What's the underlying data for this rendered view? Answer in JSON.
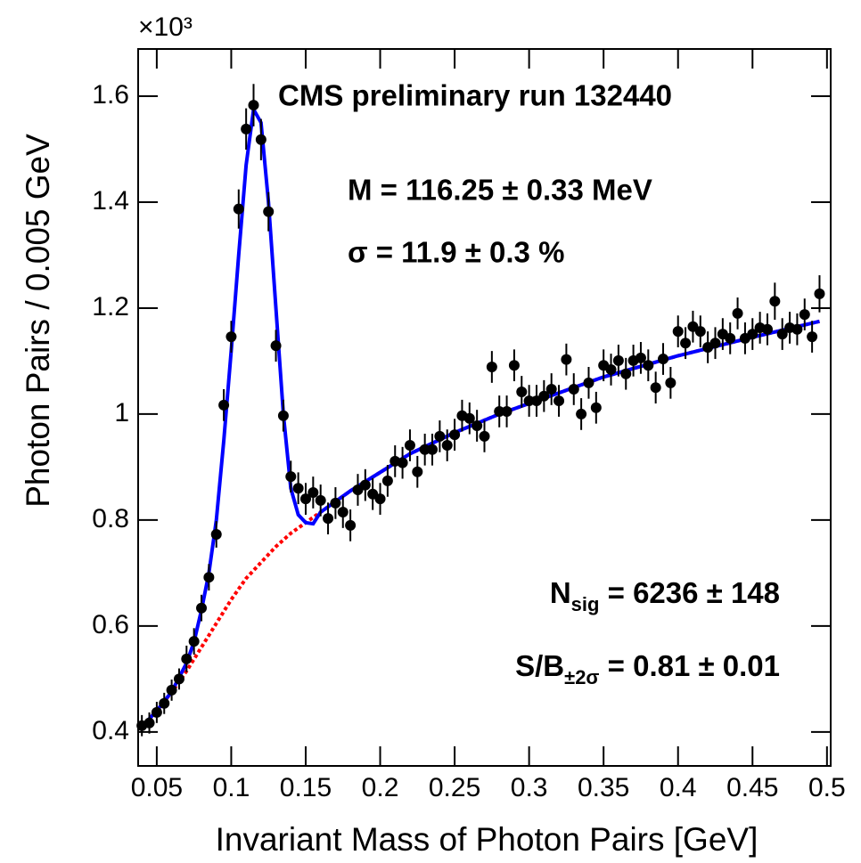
{
  "chart_data": {
    "type": "scatter",
    "title": "CMS preliminary run 132440",
    "x_label": "Invariant Mass of Photon Pairs [GeV]",
    "y_label": "Photon Pairs / 0.005 GeV",
    "y_multiplier": "×10³",
    "annotations": [
      {
        "text": "M = 116.25 ± 0.33 MeV"
      },
      {
        "text": "σ = 11.9 ± 0.3 %"
      },
      {
        "text": "N",
        "sub": "sig",
        "rest": " = 6236 ± 148"
      },
      {
        "text": "S/B",
        "sub": "±2σ",
        "rest": " = 0.81 ± 0.01"
      }
    ],
    "xlim": [
      0.0375,
      0.5025
    ],
    "ylim": [
      0.336,
      1.689
    ],
    "xticks": [
      0.05,
      0.1,
      0.15,
      0.2,
      0.25,
      0.3,
      0.35,
      0.4,
      0.45,
      0.5
    ],
    "yticks": [
      0.4,
      0.6,
      0.8,
      1,
      1.2,
      1.4,
      1.6
    ],
    "color": "#000000",
    "x": [
      0.04,
      0.045,
      0.05,
      0.055,
      0.06,
      0.065,
      0.07,
      0.075,
      0.08,
      0.085,
      0.09,
      0.095,
      0.1,
      0.105,
      0.11,
      0.115,
      0.12,
      0.125,
      0.13,
      0.135,
      0.14,
      0.145,
      0.15,
      0.155,
      0.16,
      0.165,
      0.17,
      0.175,
      0.18,
      0.185,
      0.19,
      0.195,
      0.2,
      0.205,
      0.21,
      0.215,
      0.22,
      0.225,
      0.23,
      0.235,
      0.24,
      0.245,
      0.25,
      0.255,
      0.26,
      0.265,
      0.27,
      0.275,
      0.28,
      0.285,
      0.29,
      0.295,
      0.3,
      0.305,
      0.31,
      0.315,
      0.32,
      0.325,
      0.33,
      0.335,
      0.34,
      0.345,
      0.35,
      0.355,
      0.36,
      0.365,
      0.37,
      0.375,
      0.38,
      0.385,
      0.39,
      0.395,
      0.4,
      0.405,
      0.41,
      0.415,
      0.42,
      0.425,
      0.43,
      0.435,
      0.44,
      0.445,
      0.45,
      0.455,
      0.46,
      0.465,
      0.47,
      0.475,
      0.48,
      0.485,
      0.49,
      0.495
    ],
    "values": [
      0.412,
      0.417,
      0.437,
      0.454,
      0.479,
      0.5,
      0.538,
      0.571,
      0.634,
      0.692,
      0.773,
      1.017,
      1.146,
      1.387,
      1.538,
      1.583,
      1.518,
      1.382,
      1.129,
      0.997,
      0.882,
      0.86,
      0.84,
      0.852,
      0.837,
      0.803,
      0.832,
      0.815,
      0.79,
      0.857,
      0.866,
      0.849,
      0.84,
      0.874,
      0.911,
      0.908,
      0.941,
      0.891,
      0.933,
      0.933,
      0.958,
      0.941,
      0.961,
      0.997,
      0.992,
      0.978,
      0.958,
      1.089,
      1.005,
      1.005,
      1.092,
      1.042,
      1.025,
      1.025,
      1.034,
      1.047,
      1.025,
      1.103,
      1.047,
      1.0,
      1.059,
      1.012,
      1.092,
      1.084,
      1.101,
      1.076,
      1.101,
      1.106,
      1.092,
      1.05,
      1.104,
      1.059,
      1.156,
      1.134,
      1.165,
      1.156,
      1.126,
      1.134,
      1.151,
      1.143,
      1.19,
      1.143,
      1.151,
      1.163,
      1.16,
      1.213,
      1.151,
      1.163,
      1.16,
      1.188,
      1.146,
      1.227
    ],
    "errors": [
      0.02,
      0.02,
      0.02,
      0.02,
      0.02,
      0.02,
      0.025,
      0.025,
      0.025,
      0.025,
      0.025,
      0.03,
      0.03,
      0.037,
      0.039,
      0.04,
      0.039,
      0.037,
      0.03,
      0.03,
      0.03,
      0.03,
      0.03,
      0.03,
      0.03,
      0.03,
      0.03,
      0.03,
      0.03,
      0.03,
      0.03,
      0.03,
      0.03,
      0.03,
      0.03,
      0.03,
      0.03,
      0.03,
      0.03,
      0.03,
      0.03,
      0.03,
      0.03,
      0.03,
      0.03,
      0.03,
      0.03,
      0.03,
      0.03,
      0.03,
      0.03,
      0.03,
      0.03,
      0.03,
      0.03,
      0.03,
      0.03,
      0.03,
      0.03,
      0.03,
      0.03,
      0.03,
      0.03,
      0.03,
      0.03,
      0.03,
      0.03,
      0.03,
      0.03,
      0.03,
      0.03,
      0.03,
      0.03,
      0.03,
      0.03,
      0.03,
      0.03,
      0.03,
      0.03,
      0.03,
      0.03,
      0.03,
      0.03,
      0.03,
      0.03,
      0.035,
      0.03,
      0.03,
      0.03,
      0.03,
      0.03,
      0.035
    ],
    "curves": [
      {
        "color": "#ff0000",
        "dashed": true,
        "x": [
          0.04,
          0.05,
          0.06,
          0.07,
          0.08,
          0.09,
          0.1,
          0.11,
          0.12,
          0.13,
          0.14,
          0.15,
          0.16,
          0.17,
          0.18,
          0.2,
          0.22,
          0.25,
          0.28,
          0.3,
          0.35,
          0.4,
          0.45,
          0.495
        ],
        "values": [
          0.41,
          0.44,
          0.475,
          0.515,
          0.56,
          0.605,
          0.65,
          0.69,
          0.72,
          0.75,
          0.775,
          0.795,
          0.815,
          0.835,
          0.855,
          0.89,
          0.925,
          0.965,
          1.0,
          1.02,
          1.07,
          1.11,
          1.145,
          1.175
        ]
      },
      {
        "color": "#0000ff",
        "dashed": false,
        "x": [
          0.04,
          0.05,
          0.06,
          0.07,
          0.075,
          0.08,
          0.085,
          0.09,
          0.095,
          0.1,
          0.105,
          0.11,
          0.115,
          0.12,
          0.125,
          0.13,
          0.135,
          0.14,
          0.145,
          0.15,
          0.155,
          0.16,
          0.17,
          0.18,
          0.2,
          0.22,
          0.25,
          0.28,
          0.3,
          0.35,
          0.4,
          0.45,
          0.495
        ],
        "values": [
          0.41,
          0.44,
          0.476,
          0.53,
          0.57,
          0.63,
          0.7,
          0.8,
          0.95,
          1.12,
          1.3,
          1.47,
          1.575,
          1.55,
          1.4,
          1.2,
          1.0,
          0.86,
          0.81,
          0.795,
          0.793,
          0.815,
          0.835,
          0.855,
          0.89,
          0.925,
          0.965,
          1.0,
          1.02,
          1.07,
          1.11,
          1.145,
          1.175
        ]
      }
    ]
  }
}
